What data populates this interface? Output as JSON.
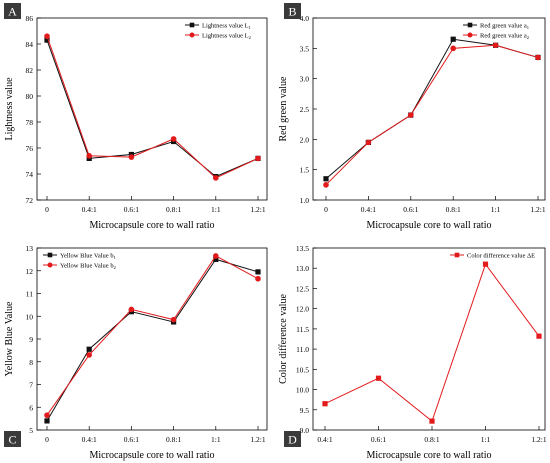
{
  "colors": {
    "black_series": "#111111",
    "red_series": "#e31a1c",
    "panel_tag_bg": "#3a3a3a",
    "panel_tag_text": "#ffffff"
  },
  "chart_data": [
    {
      "panel": "A",
      "type": "line",
      "xlabel": "Microcapsule core to wall ratio",
      "ylabel": "Lightness value",
      "categories": [
        "0",
        "0.4:1",
        "0.6:1",
        "0.8:1",
        "1:1",
        "1.2:1"
      ],
      "ylim": [
        72,
        86
      ],
      "yticks": [
        72,
        74,
        76,
        78,
        80,
        82,
        84,
        86
      ],
      "grid": false,
      "legend": "top-right",
      "series": [
        {
          "name": "Lightness value L",
          "sub": "1",
          "color": "#111111",
          "marker": "square",
          "values": [
            84.3,
            75.2,
            75.5,
            76.5,
            73.8,
            75.2
          ]
        },
        {
          "name": "Lightness value L",
          "sub": "2",
          "color": "#e31a1c",
          "marker": "circle",
          "values": [
            84.6,
            75.4,
            75.3,
            76.7,
            73.7,
            75.2
          ]
        }
      ]
    },
    {
      "panel": "B",
      "type": "line",
      "xlabel": "Microcapsule core to wall ratio",
      "ylabel": "Red green value",
      "categories": [
        "0",
        "0.4:1",
        "0.6:1",
        "0.8:1",
        "1:1",
        "1.2:1"
      ],
      "ylim": [
        1.0,
        4.0
      ],
      "yticks": [
        "1.0",
        "1.5",
        "2.0",
        "2.5",
        "3.0",
        "3.5",
        "4.0"
      ],
      "grid": false,
      "legend": "top-right",
      "series": [
        {
          "name": "Red green value a",
          "sub": "1",
          "color": "#111111",
          "marker": "square",
          "values": [
            1.35,
            1.95,
            2.4,
            3.65,
            3.55,
            3.35
          ]
        },
        {
          "name": "Red green value a",
          "sub": "2",
          "color": "#e31a1c",
          "marker": "circle",
          "values": [
            1.25,
            1.95,
            2.4,
            3.5,
            3.55,
            3.35
          ]
        }
      ]
    },
    {
      "panel": "C",
      "type": "line",
      "xlabel": "Microcapsule core to wall ratio",
      "ylabel": "Yellow Blue Value",
      "categories": [
        "0",
        "0.4:1",
        "0.6:1",
        "0.8:1",
        "1:1",
        "1.2:1"
      ],
      "ylim": [
        5,
        13
      ],
      "yticks": [
        5,
        6,
        7,
        8,
        9,
        10,
        11,
        12,
        13
      ],
      "grid": false,
      "legend": "top-left",
      "series": [
        {
          "name": "Yellow Blue Value b",
          "sub": "1",
          "color": "#111111",
          "marker": "square",
          "values": [
            5.4,
            8.55,
            10.2,
            9.75,
            12.5,
            11.95
          ]
        },
        {
          "name": "Yellow Blue Value b",
          "sub": "2",
          "color": "#e31a1c",
          "marker": "circle",
          "values": [
            5.65,
            8.3,
            10.3,
            9.85,
            12.65,
            11.65
          ]
        }
      ]
    },
    {
      "panel": "D",
      "type": "line",
      "xlabel": "Microcapsule core to wall ratio",
      "ylabel": "Color difference value",
      "categories": [
        "0.4:1",
        "0.6:1",
        "0.8:1",
        "1:1",
        "1.2:1"
      ],
      "ylim": [
        9.0,
        13.5
      ],
      "yticks": [
        "9.0",
        "9.5",
        "10.0",
        "10.5",
        "11.0",
        "11.5",
        "12.0",
        "12.5",
        "13.0",
        "13.5"
      ],
      "grid": false,
      "legend": "top-right",
      "series": [
        {
          "name": "Color difference value ΔE",
          "sub": "",
          "color": "#e31a1c",
          "marker": "square",
          "values": [
            9.65,
            10.28,
            9.22,
            13.1,
            11.32
          ]
        }
      ]
    }
  ]
}
